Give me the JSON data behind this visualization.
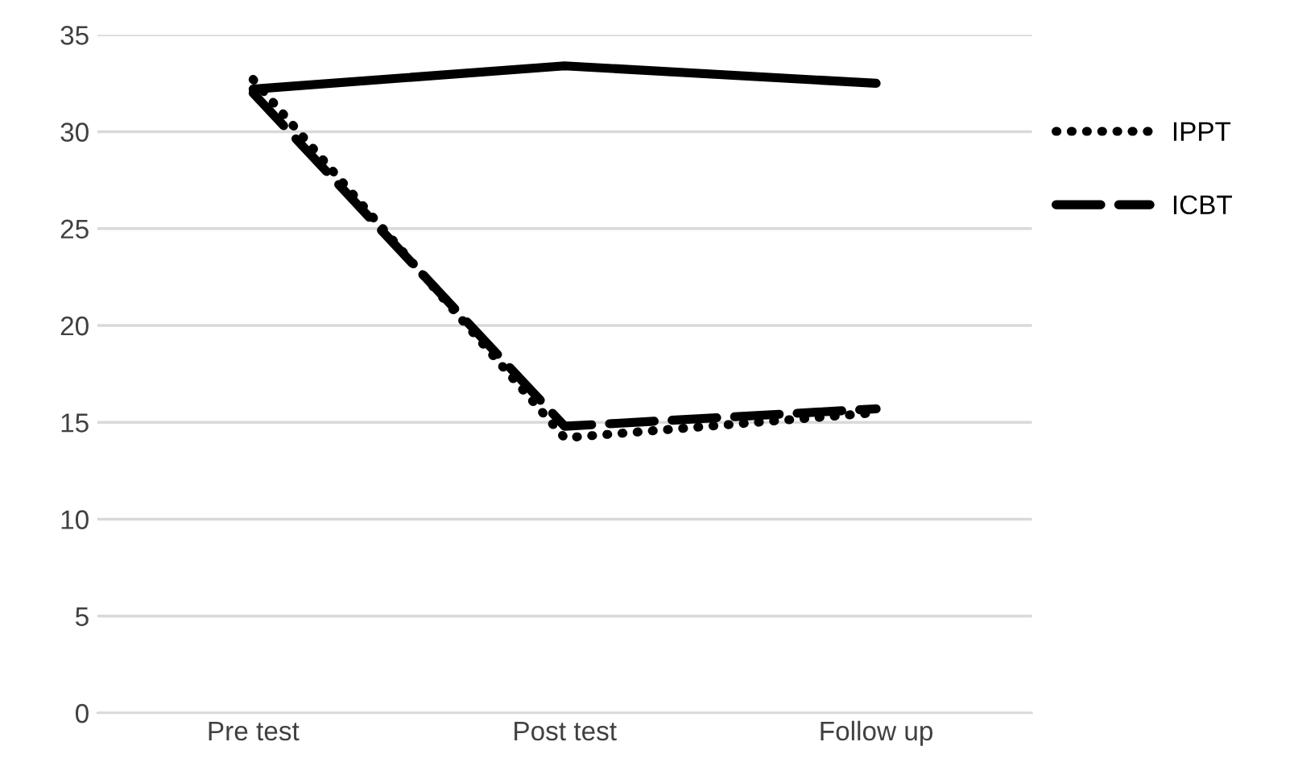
{
  "chart_data": {
    "type": "line",
    "categories": [
      "Pre test",
      "Post test",
      "Follow up"
    ],
    "series": [
      {
        "name": "IPPT",
        "color": "#000000",
        "line_style": "dotted",
        "values": [
          32.7,
          14.2,
          15.5
        ]
      },
      {
        "name": "ICBT",
        "color": "#000000",
        "line_style": "dashed",
        "values": [
          32.0,
          14.8,
          15.7
        ]
      },
      {
        "color": "#000000",
        "line_style": "solid",
        "values": [
          32.2,
          33.4,
          32.5
        ]
      }
    ],
    "ylim": [
      0,
      35
    ],
    "yticks": [
      0,
      5,
      10,
      15,
      20,
      25,
      30,
      35
    ],
    "grid": "y",
    "legend": "right",
    "marker": "none"
  }
}
